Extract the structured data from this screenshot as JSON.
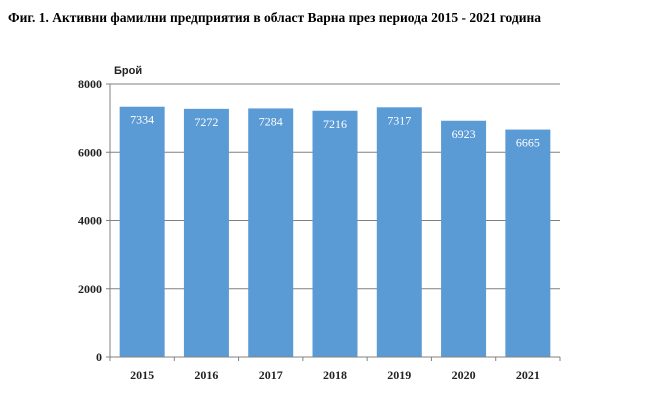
{
  "title": "Фиг. 1. Активни фамилни предприятия в област Варна през периода 2015 - 2021 година",
  "chart_data": {
    "type": "bar",
    "categories": [
      "2015",
      "2016",
      "2017",
      "2018",
      "2019",
      "2020",
      "2021"
    ],
    "values": [
      7334,
      7272,
      7284,
      7216,
      7317,
      6923,
      6665
    ],
    "ylabel": "Брой",
    "ylim": [
      0,
      8000
    ],
    "yticks": [
      0,
      2000,
      4000,
      6000,
      8000
    ],
    "grid": true,
    "bar_color": "#5b9bd5",
    "grid_color": "#808080",
    "data_label_color": "#ffffff"
  }
}
